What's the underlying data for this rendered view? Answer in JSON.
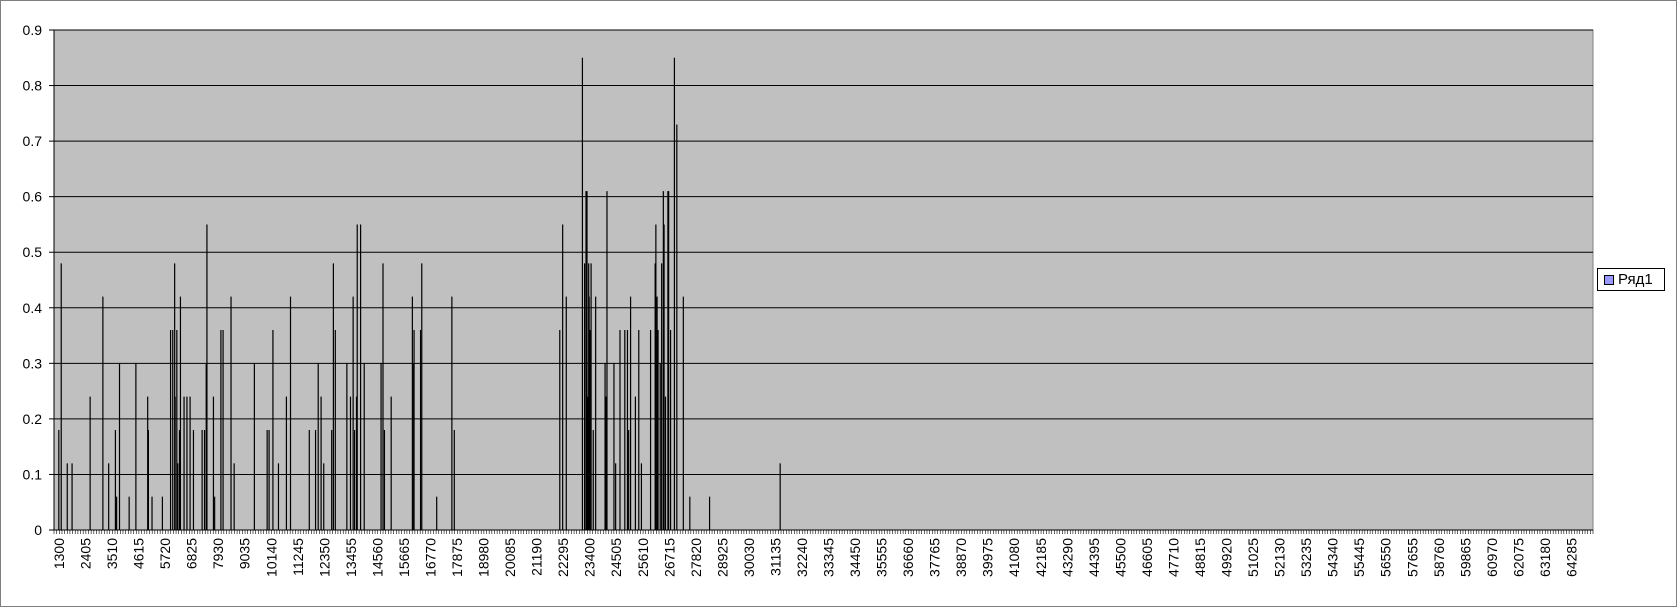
{
  "chart_data": {
    "type": "bar",
    "title": "",
    "xlabel": "",
    "ylabel": "",
    "ylim": [
      0,
      0.9
    ],
    "y_ticks": [
      "0",
      "0.1",
      "0.2",
      "0.3",
      "0.4",
      "0.5",
      "0.6",
      "0.7",
      "0.8",
      "0.9"
    ],
    "x_range": [
      1300,
      65200
    ],
    "x_tick_labels": [
      "1300",
      "2405",
      "3510",
      "4615",
      "5720",
      "6825",
      "7930",
      "9035",
      "10140",
      "11245",
      "12350",
      "13455",
      "14560",
      "15665",
      "16770",
      "17875",
      "18980",
      "20085",
      "21190",
      "22295",
      "23400",
      "24505",
      "25610",
      "26715",
      "27820",
      "28925",
      "30030",
      "31135",
      "32240",
      "33345",
      "34450",
      "35555",
      "36660",
      "37765",
      "38870",
      "39975",
      "41080",
      "42185",
      "43290",
      "44395",
      "45500",
      "46605",
      "47710",
      "48815",
      "49920",
      "51025",
      "52130",
      "53235",
      "54340",
      "55445",
      "56550",
      "57655",
      "58760",
      "59865",
      "60970",
      "62075",
      "63180",
      "64285"
    ],
    "grid": true,
    "legend_position": "right",
    "series": [
      {
        "name": "Ряд1",
        "color": "#000000",
        "points": [
          [
            1500,
            0.18
          ],
          [
            1600,
            0.48
          ],
          [
            1850,
            0.12
          ],
          [
            2050,
            0.12
          ],
          [
            2800,
            0.24
          ],
          [
            3330,
            0.42
          ],
          [
            3570,
            0.12
          ],
          [
            3850,
            0.18
          ],
          [
            3900,
            0.06
          ],
          [
            4020,
            0.3
          ],
          [
            4420,
            0.06
          ],
          [
            4700,
            0.3
          ],
          [
            5190,
            0.24
          ],
          [
            5220,
            0.18
          ],
          [
            5370,
            0.06
          ],
          [
            5800,
            0.06
          ],
          [
            6140,
            0.36
          ],
          [
            6230,
            0.36
          ],
          [
            6310,
            0.48
          ],
          [
            6330,
            0.24
          ],
          [
            6400,
            0.36
          ],
          [
            6440,
            0.12
          ],
          [
            6510,
            0.18
          ],
          [
            6550,
            0.42
          ],
          [
            6700,
            0.24
          ],
          [
            6820,
            0.24
          ],
          [
            6950,
            0.24
          ],
          [
            7090,
            0.18
          ],
          [
            7450,
            0.18
          ],
          [
            7550,
            0.18
          ],
          [
            7620,
            0.3
          ],
          [
            7650,
            0.55
          ],
          [
            7920,
            0.24
          ],
          [
            7970,
            0.06
          ],
          [
            8230,
            0.36
          ],
          [
            8320,
            0.36
          ],
          [
            8650,
            0.42
          ],
          [
            8780,
            0.12
          ],
          [
            9620,
            0.3
          ],
          [
            10150,
            0.18
          ],
          [
            10230,
            0.18
          ],
          [
            10390,
            0.36
          ],
          [
            10620,
            0.12
          ],
          [
            10950,
            0.24
          ],
          [
            11120,
            0.42
          ],
          [
            11900,
            0.18
          ],
          [
            12160,
            0.18
          ],
          [
            12270,
            0.3
          ],
          [
            12390,
            0.24
          ],
          [
            12500,
            0.12
          ],
          [
            12830,
            0.18
          ],
          [
            12900,
            0.48
          ],
          [
            12980,
            0.36
          ],
          [
            13460,
            0.3
          ],
          [
            13610,
            0.24
          ],
          [
            13720,
            0.42
          ],
          [
            13780,
            0.18
          ],
          [
            13860,
            0.24
          ],
          [
            13890,
            0.55
          ],
          [
            14030,
            0.55
          ],
          [
            14180,
            0.3
          ],
          [
            14880,
            0.3
          ],
          [
            14960,
            0.48
          ],
          [
            15020,
            0.18
          ],
          [
            15300,
            0.24
          ],
          [
            16180,
            0.42
          ],
          [
            16200,
            0.3
          ],
          [
            16250,
            0.36
          ],
          [
            16520,
            0.36
          ],
          [
            16570,
            0.48
          ],
          [
            17190,
            0.06
          ],
          [
            17820,
            0.42
          ],
          [
            17920,
            0.18
          ],
          [
            22300,
            0.36
          ],
          [
            22420,
            0.55
          ],
          [
            22570,
            0.42
          ],
          [
            23240,
            0.85
          ],
          [
            23330,
            0.48
          ],
          [
            23390,
            0.61
          ],
          [
            23430,
            0.61
          ],
          [
            23470,
            0.24
          ],
          [
            23500,
            0.48
          ],
          [
            23520,
            0.42
          ],
          [
            23550,
            0.36
          ],
          [
            23600,
            0.48
          ],
          [
            23690,
            0.18
          ],
          [
            23790,
            0.42
          ],
          [
            24180,
            0.3
          ],
          [
            24220,
            0.24
          ],
          [
            24260,
            0.61
          ],
          [
            24550,
            0.3
          ],
          [
            24620,
            0.12
          ],
          [
            24800,
            0.36
          ],
          [
            25000,
            0.36
          ],
          [
            25110,
            0.36
          ],
          [
            25160,
            0.18
          ],
          [
            25240,
            0.42
          ],
          [
            25440,
            0.24
          ],
          [
            25580,
            0.36
          ],
          [
            25690,
            0.12
          ],
          [
            26070,
            0.36
          ],
          [
            26260,
            0.48
          ],
          [
            26290,
            0.55
          ],
          [
            26340,
            0.42
          ],
          [
            26380,
            0.36
          ],
          [
            26470,
            0.3
          ],
          [
            26530,
            0.48
          ],
          [
            26600,
            0.61
          ],
          [
            26630,
            0.55
          ],
          [
            26690,
            0.24
          ],
          [
            26790,
            0.61
          ],
          [
            26820,
            0.61
          ],
          [
            26900,
            0.36
          ],
          [
            27060,
            0.85
          ],
          [
            27160,
            0.73
          ],
          [
            27430,
            0.42
          ],
          [
            27700,
            0.06
          ],
          [
            28520,
            0.06
          ],
          [
            31450,
            0.12
          ]
        ]
      }
    ]
  }
}
